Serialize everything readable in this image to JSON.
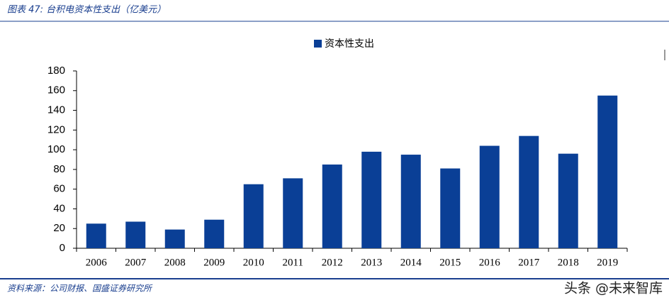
{
  "header": {
    "title": "图表 47: 台积电资本性支出（亿美元）"
  },
  "chart_data": {
    "type": "bar",
    "legend": "top",
    "categories": [
      "2006",
      "2007",
      "2008",
      "2009",
      "2010",
      "2011",
      "2012",
      "2013",
      "2014",
      "2015",
      "2016",
      "2017",
      "2018",
      "2019"
    ],
    "series": [
      {
        "name": "资本性支出",
        "color": "#0a3f96",
        "values": [
          25,
          27,
          19,
          29,
          65,
          71,
          85,
          98,
          95,
          81,
          104,
          114,
          96,
          155
        ]
      }
    ],
    "ylim": [
      0,
      180
    ],
    "yticks": [
      0,
      20,
      40,
      60,
      80,
      100,
      120,
      140,
      160,
      180
    ]
  },
  "footer": {
    "source": "资料来源：公司财报、国盛证券研究所",
    "watermark": "头条 @未来智库"
  }
}
